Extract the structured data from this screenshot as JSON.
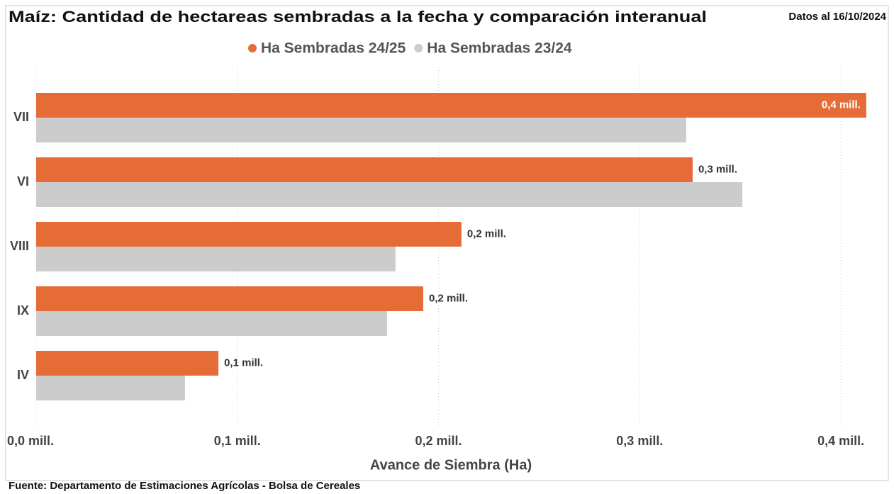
{
  "chart_data": {
    "type": "hbar",
    "title": "Maíz: Cantidad de hectareas sembradas a la fecha y comparación interanual",
    "subtitle": "Datos al 16/10/2024",
    "x_label": "Avance de Siembra (Ha)",
    "source": "Fuente: Departamento de Estimaciones Agrícolas - Bolsa de Cereales",
    "categories": [
      "VII",
      "VI",
      "VIII",
      "IX",
      "IV"
    ],
    "series": [
      {
        "name": "Ha Sembradas 24/25",
        "color": "#e66c37",
        "values": [
          412600,
          326300,
          211400,
          192400,
          90600
        ],
        "value_labels": [
          "0,4 mill.",
          "0,3 mill.",
          "0,2 mill.",
          "0,2 mill.",
          "0,1 mill."
        ]
      },
      {
        "name": "Ha Sembradas 23/24",
        "color": "#cccccc",
        "values": [
          323100,
          351000,
          178600,
          174400,
          74000
        ]
      }
    ],
    "xlim": [
      0,
      413000
    ],
    "xticks": [
      {
        "value": 0,
        "label": "0,0 mill."
      },
      {
        "value": 100000,
        "label": "0,1 mill."
      },
      {
        "value": 200000,
        "label": "0,2 mill."
      },
      {
        "value": 300000,
        "label": "0,3 mill."
      },
      {
        "value": 400000,
        "label": "0,4 mill."
      }
    ],
    "grid": true,
    "legend": "top"
  }
}
